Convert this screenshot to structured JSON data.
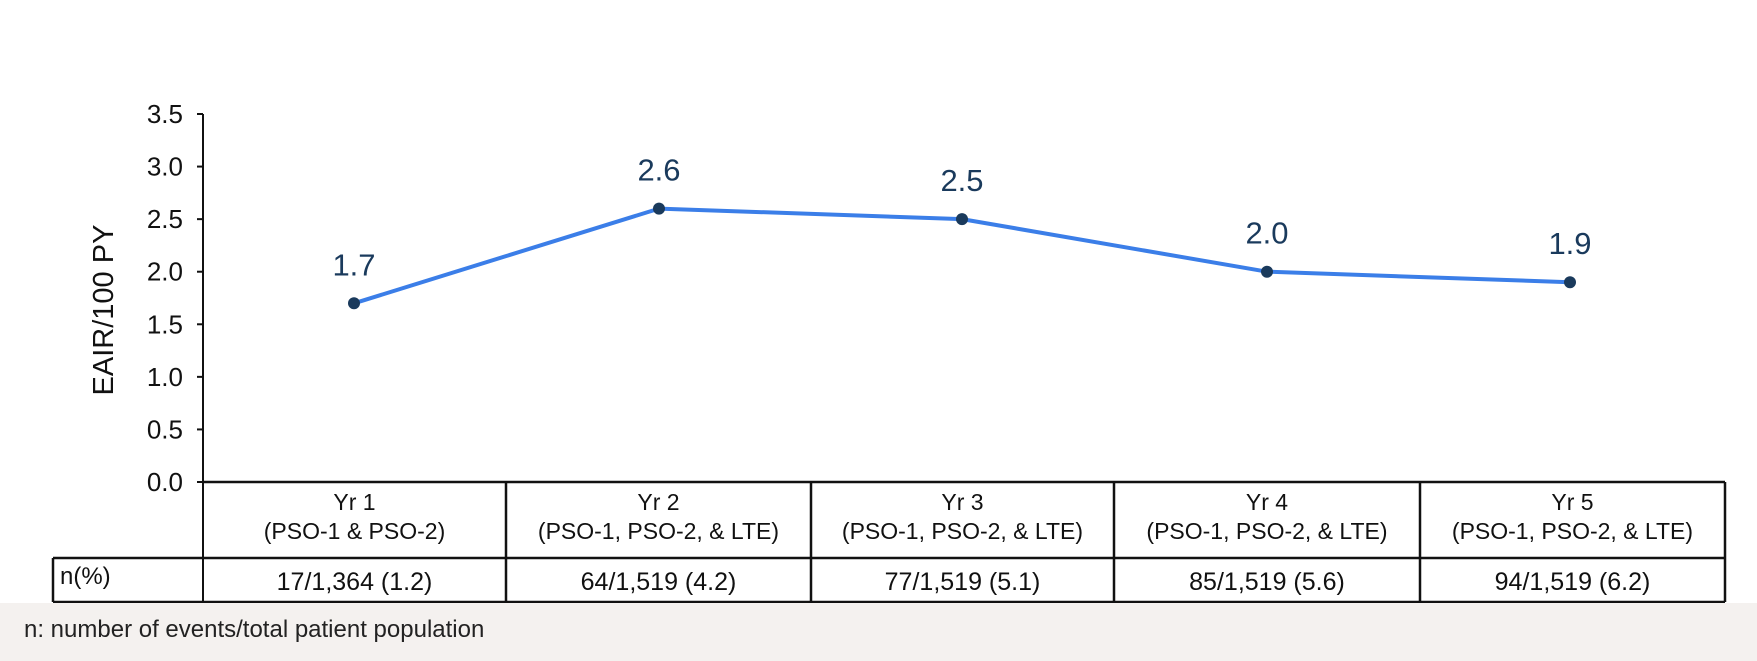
{
  "chart_data": {
    "type": "line",
    "ylabel": "EAIR/100 PY",
    "ylim": [
      0,
      3.5
    ],
    "yticks": [
      "0.0",
      "0.5",
      "1.0",
      "1.5",
      "2.0",
      "2.5",
      "3.0",
      "3.5"
    ],
    "grid": false,
    "categories": [
      {
        "line1": "Yr 1",
        "line2": "(PSO-1 & PSO-2)"
      },
      {
        "line1": "Yr 2",
        "line2": "(PSO-1, PSO-2, & LTE)"
      },
      {
        "line1": "Yr 3",
        "line2": "(PSO-1, PSO-2, & LTE)"
      },
      {
        "line1": "Yr 4",
        "line2": "(PSO-1, PSO-2, & LTE)"
      },
      {
        "line1": "Yr 5",
        "line2": "(PSO-1, PSO-2, & LTE)"
      }
    ],
    "values": [
      1.7,
      2.6,
      2.5,
      2.0,
      1.9
    ],
    "value_labels": [
      "1.7",
      "2.6",
      "2.5",
      "2.0",
      "1.9"
    ],
    "table": {
      "row_header": "n(%)",
      "cells": [
        "17/1,364 (1.2)",
        "64/1,519 (4.2)",
        "77/1,519 (5.1)",
        "85/1,519 (5.6)",
        "94/1,519 (6.2)"
      ]
    },
    "colors": {
      "line": "#3b7ee8",
      "marker": "#1a3a5c",
      "label": "#1a3a5c",
      "text": "#111111"
    }
  },
  "footnote": "n: number of events/total patient population"
}
